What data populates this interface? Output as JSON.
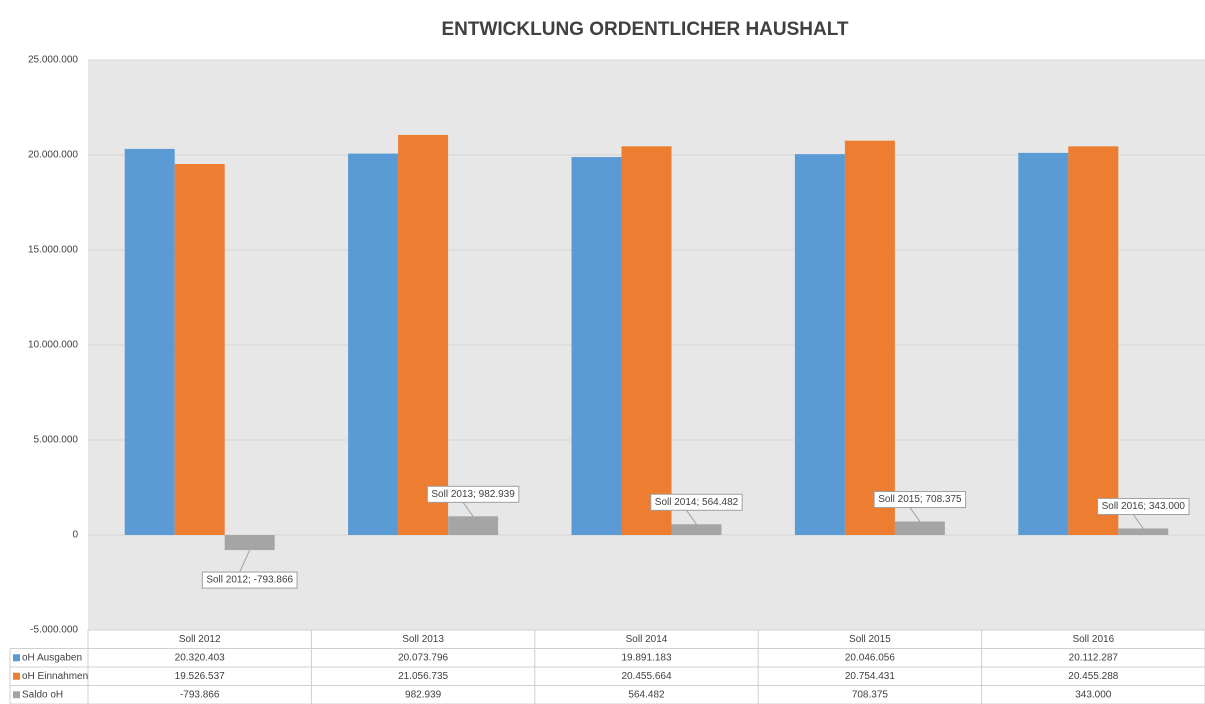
{
  "chart_data": {
    "type": "bar",
    "title": "ENTWICKLUNG ORDENTLICHER HAUSHALT",
    "categories": [
      "Soll 2012",
      "Soll 2013",
      "Soll 2014",
      "Soll 2015",
      "Soll 2016"
    ],
    "series": [
      {
        "name": "oH Ausgaben",
        "color": "#5b9bd5",
        "values": [
          20320403,
          20073796,
          19891183,
          20046056,
          20112287
        ],
        "value_labels": [
          "20.320.403",
          "20.073.796",
          "19.891.183",
          "20.046.056",
          "20.112.287"
        ]
      },
      {
        "name": "oH Einnahmen",
        "color": "#ed7d31",
        "values": [
          19526537,
          21056735,
          20455664,
          20754431,
          20455288
        ],
        "value_labels": [
          "19.526.537",
          "21.056.735",
          "20.455.664",
          "20.754.431",
          "20.455.288"
        ]
      },
      {
        "name": "Saldo oH",
        "color": "#a5a5a5",
        "values": [
          -793866,
          982939,
          564482,
          708375,
          343000
        ],
        "value_labels": [
          "-793.866",
          "982.939",
          "564.482",
          "708.375",
          "343.000"
        ],
        "data_labels": [
          "Soll 2012; -793.866",
          "Soll 2013; 982.939",
          "Soll 2014; 564.482",
          "Soll 2015; 708.375",
          "Soll 2016; 343.000"
        ]
      }
    ],
    "ylim": [
      -5000000,
      25000000
    ],
    "yticks": [
      {
        "value": -5000000,
        "label": "-5.000.000"
      },
      0,
      {
        "value": 5000000,
        "label": "5.000.000"
      },
      {
        "value": 10000000,
        "label": "10.000.000"
      },
      {
        "value": 15000000,
        "label": "15.000.000"
      },
      {
        "value": 20000000,
        "label": "20.000.000"
      },
      {
        "value": 25000000,
        "label": "25.000.000"
      }
    ],
    "grid": true
  }
}
